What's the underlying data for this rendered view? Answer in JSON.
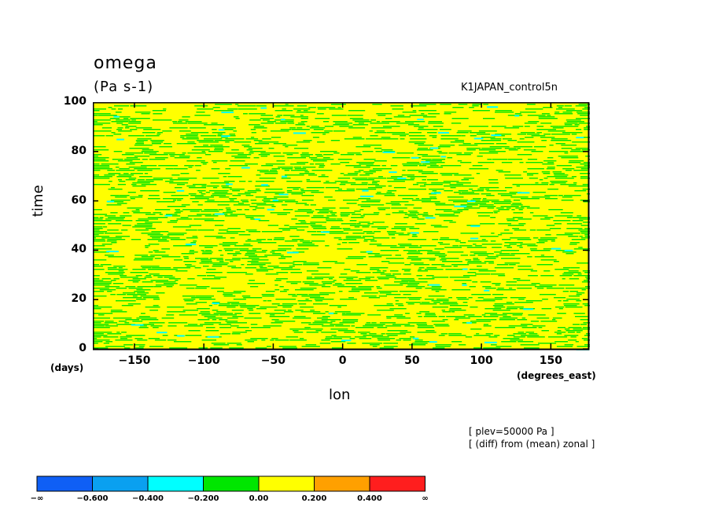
{
  "header": {
    "title": "omega",
    "units": "(Pa s-1)",
    "run_name": "K1JAPAN_control5n"
  },
  "notes": {
    "line1": "[ plev=50000 Pa ]",
    "line2": "[ (diff) from (mean) zonal ]"
  },
  "chart_data": {
    "type": "heatmap",
    "title": "omega",
    "subtitle": "(Pa s-1)",
    "xlabel": "lon",
    "xunits": "(degrees_east)",
    "ylabel": "time",
    "yunits": "(days)",
    "xlim": [
      -180,
      177
    ],
    "ylim": [
      0,
      100
    ],
    "x_ticks": [
      -150,
      -100,
      -50,
      0,
      50,
      100,
      150
    ],
    "x_tick_labels": [
      "−150",
      "−100",
      "−50",
      "0",
      "50",
      "100",
      "150"
    ],
    "y_ticks": [
      0,
      20,
      40,
      60,
      80,
      100
    ],
    "y_tick_labels": [
      "0",
      "20",
      "40",
      "60",
      "80",
      "100"
    ],
    "dominant_ranges": [
      "-0.200 to 0.00",
      "0.00 to 0.200"
    ],
    "colorbar": {
      "levels": [
        "−∞",
        "−0.600",
        "−0.400",
        "−0.200",
        "0.00",
        "0.200",
        "0.400",
        "∞"
      ],
      "colors": [
        "#0f5ff5",
        "#0aa0f0",
        "#00ffff",
        "#00e600",
        "#ffff00",
        "#ffa000",
        "#ff1e1e"
      ]
    }
  }
}
